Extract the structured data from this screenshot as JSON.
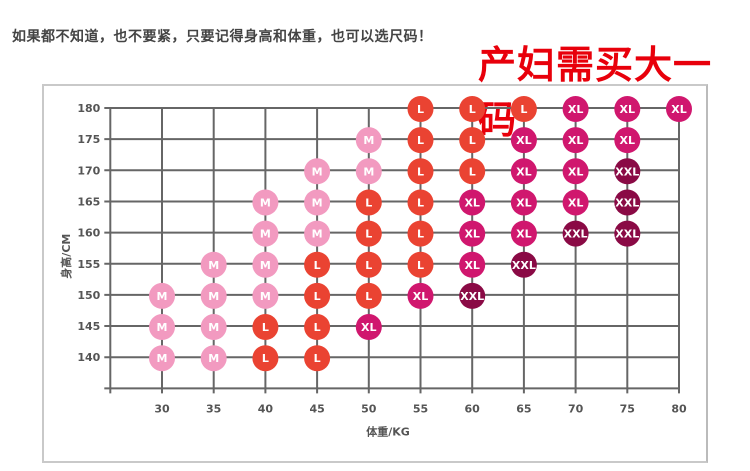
{
  "header": {
    "note": "如果都不知道，也不要紧，只要记得身高和体重，也可以选尺码！",
    "promo": "产妇需买大一码"
  },
  "chart_data": {
    "type": "scatter",
    "title": "",
    "xlabel": "体重/KG",
    "ylabel": "身高/CM",
    "x_ticks": [
      30,
      35,
      40,
      45,
      50,
      55,
      60,
      65,
      70,
      75,
      80
    ],
    "y_ticks": [
      140,
      145,
      150,
      155,
      160,
      165,
      170,
      175,
      180
    ],
    "xlim": [
      25,
      80
    ],
    "ylim": [
      135,
      180
    ],
    "grid": true,
    "colors": {
      "M": "#f29ac0",
      "L": "#ea4332",
      "XL": "#d0176e",
      "XXL": "#8a0a45"
    },
    "points": [
      [
        30,
        150,
        "M"
      ],
      [
        30,
        145,
        "M"
      ],
      [
        30,
        140,
        "M"
      ],
      [
        35,
        155,
        "M"
      ],
      [
        35,
        150,
        "M"
      ],
      [
        35,
        145,
        "M"
      ],
      [
        35,
        140,
        "M"
      ],
      [
        40,
        165,
        "M"
      ],
      [
        40,
        160,
        "M"
      ],
      [
        40,
        155,
        "M"
      ],
      [
        40,
        150,
        "M"
      ],
      [
        40,
        145,
        "L"
      ],
      [
        40,
        140,
        "L"
      ],
      [
        45,
        170,
        "M"
      ],
      [
        45,
        165,
        "M"
      ],
      [
        45,
        160,
        "M"
      ],
      [
        45,
        155,
        "L"
      ],
      [
        45,
        150,
        "L"
      ],
      [
        45,
        145,
        "L"
      ],
      [
        45,
        140,
        "L"
      ],
      [
        50,
        175,
        "M"
      ],
      [
        50,
        170,
        "M"
      ],
      [
        50,
        165,
        "L"
      ],
      [
        50,
        160,
        "L"
      ],
      [
        50,
        155,
        "L"
      ],
      [
        50,
        150,
        "L"
      ],
      [
        50,
        145,
        "XL"
      ],
      [
        55,
        180,
        "L"
      ],
      [
        55,
        175,
        "L"
      ],
      [
        55,
        170,
        "L"
      ],
      [
        55,
        165,
        "L"
      ],
      [
        55,
        160,
        "L"
      ],
      [
        55,
        155,
        "L"
      ],
      [
        55,
        150,
        "XL"
      ],
      [
        60,
        180,
        "L"
      ],
      [
        60,
        175,
        "L"
      ],
      [
        60,
        170,
        "L"
      ],
      [
        60,
        165,
        "XL"
      ],
      [
        60,
        160,
        "XL"
      ],
      [
        60,
        155,
        "XL"
      ],
      [
        60,
        150,
        "XXL"
      ],
      [
        65,
        180,
        "L"
      ],
      [
        65,
        175,
        "XL"
      ],
      [
        65,
        170,
        "XL"
      ],
      [
        65,
        165,
        "XL"
      ],
      [
        65,
        160,
        "XL"
      ],
      [
        65,
        155,
        "XXL"
      ],
      [
        70,
        180,
        "XL"
      ],
      [
        70,
        175,
        "XL"
      ],
      [
        70,
        170,
        "XL"
      ],
      [
        70,
        165,
        "XL"
      ],
      [
        70,
        160,
        "XXL"
      ],
      [
        75,
        180,
        "XL"
      ],
      [
        75,
        175,
        "XL"
      ],
      [
        75,
        170,
        "XXL"
      ],
      [
        75,
        165,
        "XXL"
      ],
      [
        75,
        160,
        "XXL"
      ],
      [
        80,
        180,
        "XL"
      ]
    ]
  }
}
